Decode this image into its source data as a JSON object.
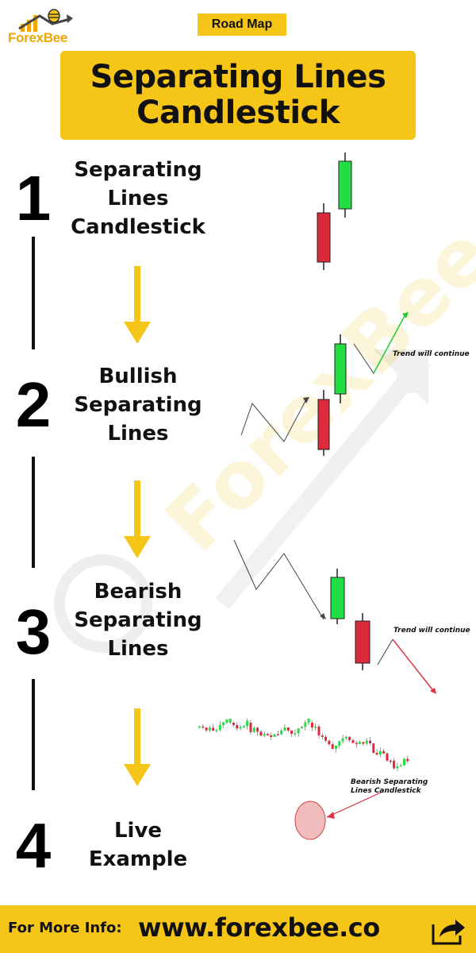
{
  "brand": {
    "logo_text": "ForexBee"
  },
  "header": {
    "tag": "Road Map",
    "title": "Separating Lines\nCandlestick"
  },
  "steps": [
    {
      "number": "1",
      "label": "Separating\nLines\nCandlestick"
    },
    {
      "number": "2",
      "label": "Bullish\nSeparating\nLines",
      "note": "Trend will continue"
    },
    {
      "number": "3",
      "label": "Bearish\nSeparating\nLines",
      "note": "Trend will continue"
    },
    {
      "number": "4",
      "label": "Live\nExample",
      "note": "Bearish Separating\nLines Candlestick"
    }
  ],
  "watermark": "ForexBee",
  "footer": {
    "label": "For More Info:",
    "url": "www.forexbee.co"
  },
  "colors": {
    "accent_yellow": "#f5c518",
    "bull_green": "#22dd44",
    "bear_red": "#dd2a3a",
    "arrow_green": "#22cc33",
    "arrow_red": "#dd3344"
  },
  "icons": [
    "bee-logo-icon",
    "down-arrow-icon",
    "share-icon"
  ]
}
